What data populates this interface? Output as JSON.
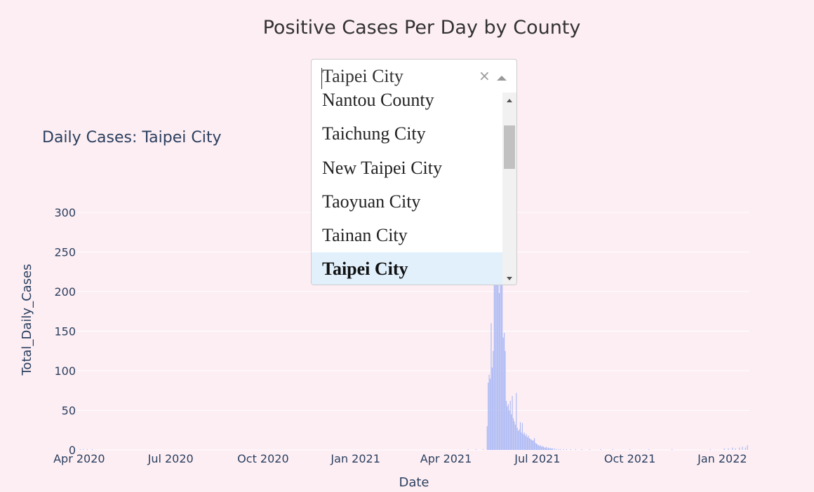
{
  "page": {
    "title": "Positive Cases Per Day by County"
  },
  "dropdown": {
    "value": "Taipei City",
    "clear_symbol": "×",
    "options": [
      "Nantou County",
      "Taichung City",
      "New Taipei City",
      "Taoyuan City",
      "Tainan City",
      "Taipei City"
    ],
    "selected": "Taipei City"
  },
  "colors": {
    "bar": "#a9b8f5",
    "background": "#fdeef3",
    "grid": "#ffffff",
    "axis_text": "#2a3f5f"
  },
  "chart_data": {
    "type": "bar",
    "title": "Daily Cases: Taipei City",
    "xlabel": "Date",
    "ylabel": "Total_Daily_Cases",
    "ylim": [
      0,
      315
    ],
    "yticks": [
      0,
      50,
      100,
      150,
      200,
      250,
      300
    ],
    "xlim": [
      "2020-03-30",
      "2022-01-28"
    ],
    "xticks": [
      {
        "date": "2020-04-01",
        "label": "Apr 2020"
      },
      {
        "date": "2020-07-01",
        "label": "Jul 2020"
      },
      {
        "date": "2020-10-01",
        "label": "Oct 2020"
      },
      {
        "date": "2021-01-01",
        "label": "Jan 2021"
      },
      {
        "date": "2021-04-01",
        "label": "Apr 2021"
      },
      {
        "date": "2021-07-01",
        "label": "Jul 2021"
      },
      {
        "date": "2021-10-01",
        "label": "Oct 2021"
      },
      {
        "date": "2022-01-01",
        "label": "Jan 2022"
      }
    ],
    "x": [
      "2020-04-02",
      "2020-04-05",
      "2020-04-09",
      "2020-04-14",
      "2021-04-23",
      "2021-05-01",
      "2021-05-08",
      "2021-05-12",
      "2021-05-13",
      "2021-05-14",
      "2021-05-15",
      "2021-05-16",
      "2021-05-17",
      "2021-05-18",
      "2021-05-19",
      "2021-05-20",
      "2021-05-21",
      "2021-05-22",
      "2021-05-23",
      "2021-05-24",
      "2021-05-25",
      "2021-05-26",
      "2021-05-27",
      "2021-05-28",
      "2021-05-29",
      "2021-05-30",
      "2021-05-31",
      "2021-06-01",
      "2021-06-02",
      "2021-06-03",
      "2021-06-04",
      "2021-06-05",
      "2021-06-06",
      "2021-06-07",
      "2021-06-08",
      "2021-06-09",
      "2021-06-10",
      "2021-06-11",
      "2021-06-12",
      "2021-06-13",
      "2021-06-14",
      "2021-06-15",
      "2021-06-16",
      "2021-06-17",
      "2021-06-18",
      "2021-06-19",
      "2021-06-20",
      "2021-06-21",
      "2021-06-22",
      "2021-06-23",
      "2021-06-24",
      "2021-06-25",
      "2021-06-26",
      "2021-06-27",
      "2021-06-28",
      "2021-06-29",
      "2021-06-30",
      "2021-07-01",
      "2021-07-02",
      "2021-07-03",
      "2021-07-04",
      "2021-07-05",
      "2021-07-06",
      "2021-07-07",
      "2021-07-08",
      "2021-07-09",
      "2021-07-10",
      "2021-07-11",
      "2021-07-12",
      "2021-07-13",
      "2021-07-14",
      "2021-07-15",
      "2021-07-16",
      "2021-07-18",
      "2021-07-20",
      "2021-07-22",
      "2021-07-24",
      "2021-07-27",
      "2021-07-30",
      "2021-08-03",
      "2021-08-08",
      "2021-08-14",
      "2021-08-22",
      "2021-09-02",
      "2021-09-14",
      "2021-10-01",
      "2021-10-20",
      "2021-11-12",
      "2021-12-20",
      "2022-01-03",
      "2022-01-07",
      "2022-01-11",
      "2022-01-14",
      "2022-01-18",
      "2022-01-21",
      "2022-01-24",
      "2022-01-26"
    ],
    "values": [
      1,
      1,
      1,
      1,
      1,
      1,
      1,
      30,
      85,
      95,
      90,
      160,
      104,
      125,
      290,
      215,
      260,
      285,
      232,
      198,
      212,
      258,
      285,
      142,
      148,
      125,
      62,
      55,
      58,
      50,
      62,
      45,
      68,
      40,
      36,
      32,
      72,
      28,
      24,
      26,
      35,
      22,
      34,
      20,
      22,
      18,
      20,
      16,
      18,
      15,
      14,
      13,
      12,
      12,
      15,
      9,
      8,
      7,
      6,
      5,
      6,
      4,
      5,
      4,
      3,
      3,
      4,
      2,
      3,
      2,
      2,
      2,
      2,
      2,
      1,
      1,
      1,
      1,
      1,
      1,
      1,
      1,
      1,
      1,
      1,
      1,
      1,
      1,
      1,
      2,
      2,
      3,
      2,
      3,
      4,
      3,
      6
    ]
  }
}
